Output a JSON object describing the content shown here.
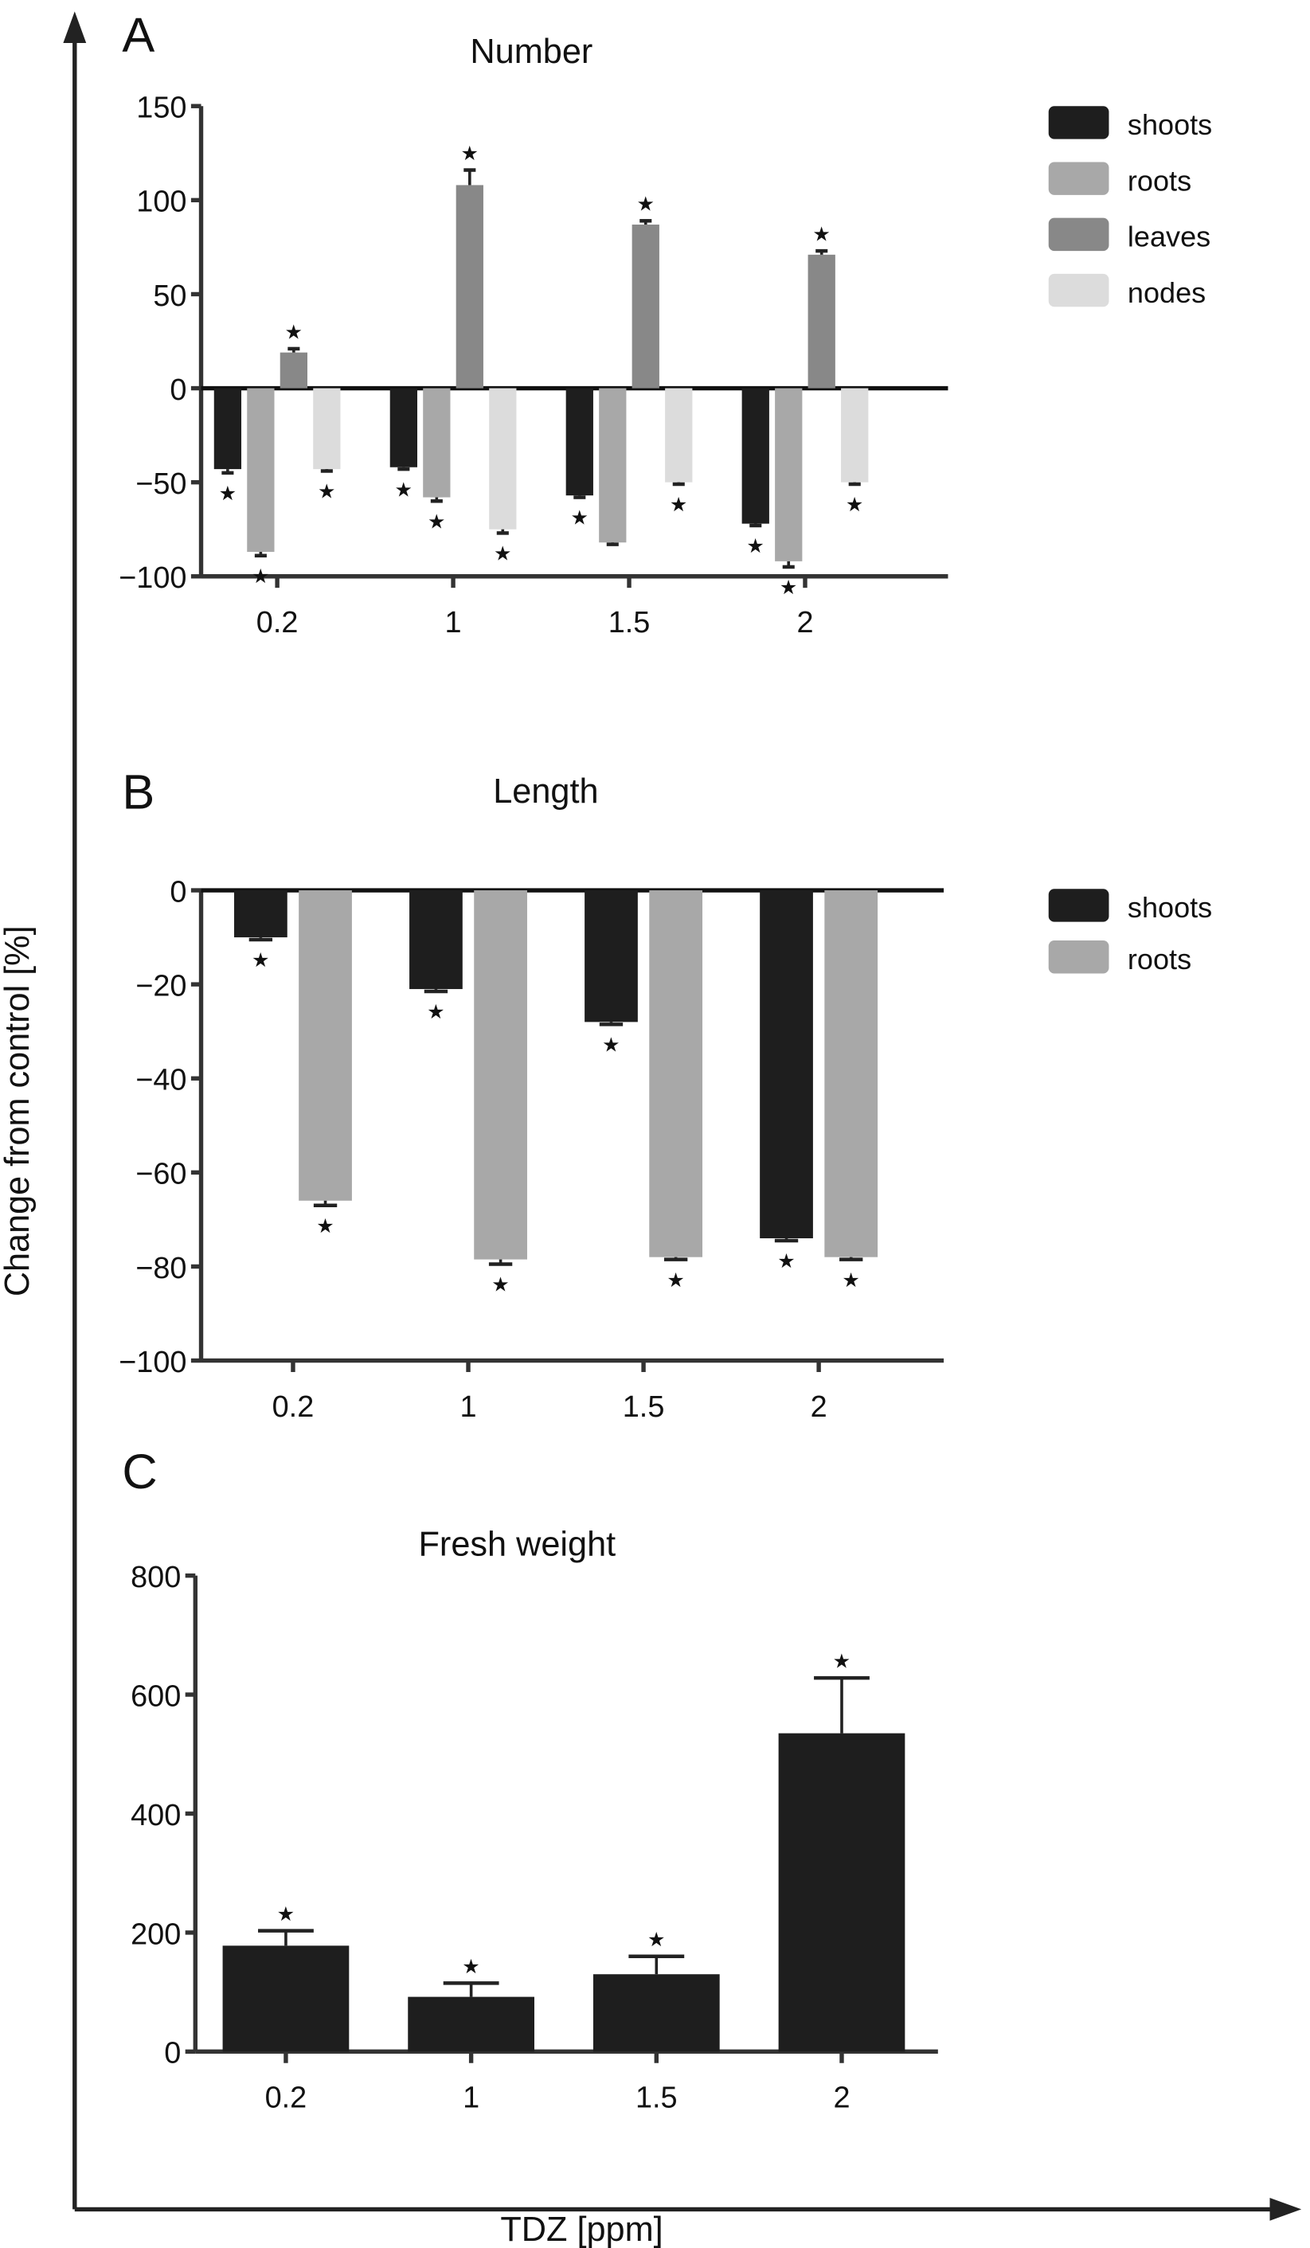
{
  "figure": {
    "y_axis_label": "Change from control [%]",
    "x_axis_label": "TDZ [ppm]"
  },
  "chart_data": [
    {
      "panel": "A",
      "type": "bar",
      "title": "Number",
      "categories": [
        "0.2",
        "1",
        "1.5",
        "2"
      ],
      "xlabel": "TDZ [ppm]",
      "ylabel": "Change from control [%]",
      "ylim": [
        -100,
        150
      ],
      "yticks": [
        150,
        100,
        50,
        0,
        -50,
        -100
      ],
      "ytick_labels": [
        "150",
        "100",
        "50",
        "0",
        "-50",
        "-100"
      ],
      "legend": [
        "shoots",
        "roots",
        "leaves",
        "nodes"
      ],
      "legend_position": "top-right",
      "grid": false,
      "series": [
        {
          "name": "shoots",
          "color": "#1e1e1e",
          "values": [
            -43,
            -42,
            -57,
            -72
          ],
          "errors": [
            2,
            1,
            1,
            1
          ],
          "significant": [
            true,
            true,
            true,
            true
          ]
        },
        {
          "name": "roots",
          "color": "#a8a8a8",
          "values": [
            -87,
            -58,
            -82,
            -92
          ],
          "errors": [
            2,
            2,
            1,
            3
          ],
          "significant": [
            true,
            true,
            false,
            true
          ]
        },
        {
          "name": "leaves",
          "color": "#888888",
          "values": [
            19,
            108,
            87,
            71
          ],
          "errors": [
            2,
            8,
            2,
            2
          ],
          "significant": [
            true,
            true,
            true,
            true
          ]
        },
        {
          "name": "nodes",
          "color": "#dcdcdc",
          "values": [
            -43,
            -75,
            -50,
            -50
          ],
          "errors": [
            1,
            2,
            1,
            1
          ],
          "significant": [
            true,
            true,
            true,
            true
          ]
        }
      ]
    },
    {
      "panel": "B",
      "type": "bar",
      "title": "Length",
      "categories": [
        "0.2",
        "1",
        "1.5",
        "2"
      ],
      "xlabel": "TDZ [ppm]",
      "ylabel": "Change from control [%]",
      "ylim": [
        -100,
        0
      ],
      "yticks": [
        0,
        -20,
        -40,
        -60,
        -80,
        -100
      ],
      "ytick_labels": [
        "0",
        "-20",
        "-40",
        "-60",
        "-80",
        "-100"
      ],
      "legend": [
        "shoots",
        "roots"
      ],
      "legend_position": "top-right",
      "grid": false,
      "series": [
        {
          "name": "shoots",
          "color": "#1e1e1e",
          "values": [
            -10,
            -21,
            -28,
            -74
          ],
          "errors": [
            0.5,
            0.5,
            0.5,
            0.5
          ],
          "significant": [
            true,
            true,
            true,
            true
          ]
        },
        {
          "name": "roots",
          "color": "#a8a8a8",
          "values": [
            -66,
            -78.5,
            -78,
            -78
          ],
          "errors": [
            1,
            1,
            0.5,
            0.5
          ],
          "significant": [
            true,
            true,
            true,
            true
          ]
        }
      ]
    },
    {
      "panel": "C",
      "type": "bar",
      "title": "Fresh weight",
      "categories": [
        "0.2",
        "1",
        "1.5",
        "2"
      ],
      "xlabel": "TDZ [ppm]",
      "ylabel": "Change from control [%]",
      "ylim": [
        0,
        800
      ],
      "yticks": [
        800,
        600,
        400,
        200,
        0
      ],
      "ytick_labels": [
        "800",
        "600",
        "400",
        "200",
        "0"
      ],
      "legend": [],
      "grid": false,
      "series": [
        {
          "name": "fresh weight",
          "color": "#1e1e1e",
          "values": [
            178,
            92,
            130,
            535
          ],
          "errors": [
            25,
            23,
            30,
            93
          ],
          "significant": [
            true,
            true,
            true,
            true
          ]
        }
      ]
    }
  ]
}
